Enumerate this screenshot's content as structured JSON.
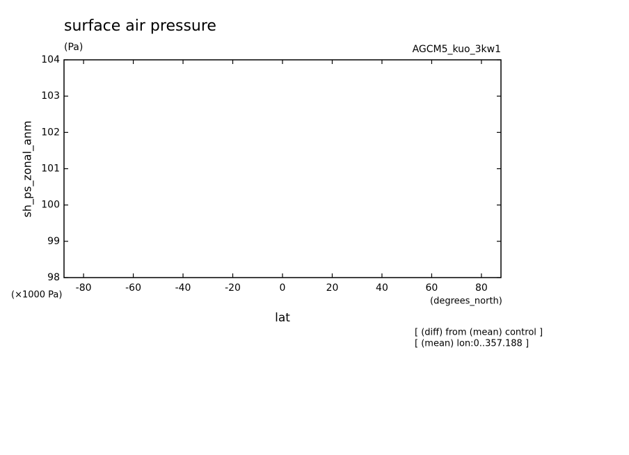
{
  "chart_data": {
    "type": "line",
    "title": "surface air pressure",
    "subtitle": "(Pa)",
    "annotation": "AGCM5_kuo_3kw1",
    "x_label": "lat",
    "x_unit": "(degrees_north)",
    "y_label": "sh_ps_zonal_anm",
    "y_unit": "(×1000 Pa)",
    "notes": [
      "[ (diff) from (mean) control ]",
      "[ (mean) lon:0..357.188 ]"
    ],
    "series": [],
    "xlim": [
      -87.86,
      87.86
    ],
    "xticks": [
      -80,
      -60,
      -40,
      -20,
      0,
      20,
      40,
      60,
      80
    ],
    "ylim": [
      98,
      104
    ],
    "yticks": [
      98,
      99,
      100,
      101,
      102,
      103,
      104
    ],
    "grid": false
  }
}
